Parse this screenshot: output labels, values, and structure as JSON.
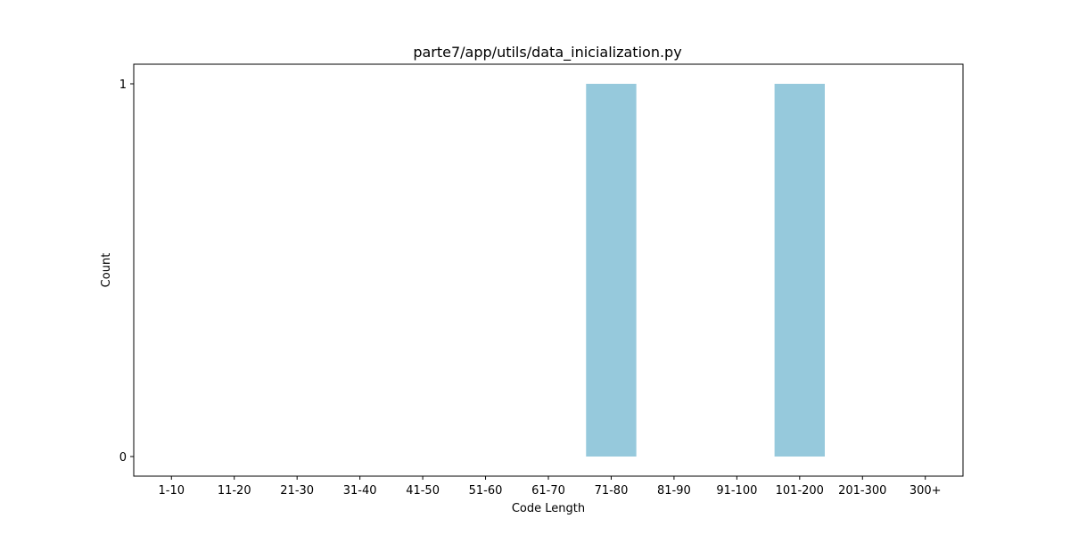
{
  "chart_data": {
    "type": "bar",
    "title": "parte7/app/utils/data_inicialization.py",
    "xlabel": "Code Length",
    "ylabel": "Count",
    "categories": [
      "1-10",
      "11-20",
      "21-30",
      "31-40",
      "41-50",
      "51-60",
      "61-70",
      "71-80",
      "81-90",
      "91-100",
      "101-200",
      "201-300",
      "300+"
    ],
    "values": [
      0,
      0,
      0,
      0,
      0,
      0,
      0,
      1,
      0,
      0,
      1,
      0,
      0
    ],
    "ylim": [
      -0.05,
      1.0
    ],
    "yticks": [
      0,
      1
    ],
    "bar_color": "#96c9dc",
    "grid": false,
    "legend": "none"
  }
}
